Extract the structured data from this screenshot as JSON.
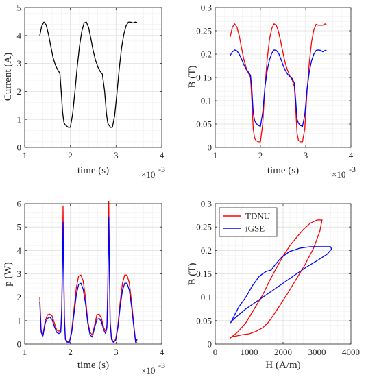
{
  "chart_data": [
    {
      "type": "line",
      "xlabel": "time (s)",
      "ylabel": "Current (A)",
      "xlim": [
        1,
        4
      ],
      "ylim": [
        0,
        5
      ],
      "x_ticks": [
        1,
        2,
        3,
        4
      ],
      "y_ticks": [
        0,
        1,
        2,
        3,
        4,
        5
      ],
      "x_exponent": "-3",
      "grid": true,
      "minor_grid": true,
      "series": [
        {
          "color": "#000000",
          "x": [
            1.33,
            1.37,
            1.42,
            1.47,
            1.52,
            1.57,
            1.62,
            1.67,
            1.72,
            1.77,
            1.8,
            1.83,
            1.86,
            1.89,
            1.92,
            1.96,
            2.0,
            2.05,
            2.1,
            2.15,
            2.2,
            2.25,
            2.3,
            2.35,
            2.4,
            2.45,
            2.5,
            2.55,
            2.6,
            2.65,
            2.7,
            2.75,
            2.79,
            2.82,
            2.84,
            2.86,
            2.88,
            2.92,
            2.97,
            3.02,
            3.07,
            3.12,
            3.17,
            3.22,
            3.27,
            3.32,
            3.37,
            3.42,
            3.46
          ],
          "y": [
            4.0,
            4.32,
            4.48,
            4.38,
            4.05,
            3.62,
            3.22,
            2.95,
            2.78,
            2.65,
            2.0,
            1.25,
            0.88,
            0.8,
            0.76,
            0.71,
            0.72,
            1.2,
            2.0,
            2.88,
            3.62,
            4.15,
            4.45,
            4.48,
            4.28,
            3.88,
            3.45,
            3.12,
            2.88,
            2.72,
            2.62,
            2.0,
            1.2,
            0.86,
            0.8,
            0.76,
            0.71,
            0.72,
            1.15,
            1.95,
            2.82,
            3.55,
            4.05,
            4.35,
            4.48,
            4.48,
            4.45,
            4.48,
            4.47
          ]
        }
      ]
    },
    {
      "type": "line",
      "xlabel": "time (s)",
      "ylabel": "B (T)",
      "xlim": [
        1,
        4
      ],
      "ylim": [
        0,
        0.3
      ],
      "x_ticks": [
        1,
        2,
        3,
        4
      ],
      "y_ticks": [
        0,
        0.05,
        0.1,
        0.15,
        0.2,
        0.25,
        0.3
      ],
      "x_exponent": "-3",
      "grid": true,
      "minor_grid": true,
      "series": [
        {
          "color": "#ff0000",
          "x": [
            1.33,
            1.38,
            1.43,
            1.48,
            1.53,
            1.58,
            1.63,
            1.68,
            1.73,
            1.78,
            1.81,
            1.84,
            1.87,
            1.9,
            1.95,
            2.0,
            2.05,
            2.1,
            2.15,
            2.2,
            2.25,
            2.3,
            2.35,
            2.4,
            2.45,
            2.5,
            2.55,
            2.6,
            2.65,
            2.7,
            2.75,
            2.78,
            2.81,
            2.84,
            2.88,
            2.93,
            2.98,
            3.03,
            3.08,
            3.13,
            3.18,
            3.23,
            3.28,
            3.33,
            3.38,
            3.43,
            3.46
          ],
          "y": [
            0.237,
            0.258,
            0.265,
            0.258,
            0.24,
            0.214,
            0.19,
            0.172,
            0.16,
            0.15,
            0.1,
            0.04,
            0.02,
            0.015,
            0.012,
            0.012,
            0.05,
            0.13,
            0.19,
            0.232,
            0.255,
            0.265,
            0.262,
            0.248,
            0.226,
            0.202,
            0.18,
            0.165,
            0.153,
            0.145,
            0.13,
            0.08,
            0.03,
            0.015,
            0.012,
            0.012,
            0.04,
            0.12,
            0.182,
            0.226,
            0.252,
            0.264,
            0.262,
            0.262,
            0.262,
            0.265,
            0.263
          ]
        },
        {
          "color": "#0000ff",
          "x": [
            1.33,
            1.38,
            1.43,
            1.48,
            1.53,
            1.58,
            1.63,
            1.68,
            1.73,
            1.78,
            1.81,
            1.84,
            1.87,
            1.9,
            1.95,
            2.0,
            2.05,
            2.1,
            2.15,
            2.2,
            2.25,
            2.3,
            2.35,
            2.4,
            2.45,
            2.5,
            2.55,
            2.6,
            2.65,
            2.7,
            2.75,
            2.78,
            2.81,
            2.84,
            2.88,
            2.93,
            2.98,
            3.03,
            3.08,
            3.13,
            3.18,
            3.23,
            3.28,
            3.33,
            3.38,
            3.43,
            3.46
          ],
          "y": [
            0.197,
            0.205,
            0.209,
            0.207,
            0.2,
            0.19,
            0.178,
            0.168,
            0.162,
            0.155,
            0.125,
            0.075,
            0.058,
            0.052,
            0.047,
            0.045,
            0.075,
            0.13,
            0.165,
            0.188,
            0.202,
            0.209,
            0.208,
            0.202,
            0.19,
            0.176,
            0.165,
            0.157,
            0.152,
            0.148,
            0.138,
            0.1,
            0.06,
            0.052,
            0.047,
            0.045,
            0.07,
            0.125,
            0.162,
            0.186,
            0.2,
            0.208,
            0.209,
            0.208,
            0.205,
            0.208,
            0.208
          ]
        }
      ]
    },
    {
      "type": "line",
      "xlabel": "time (s)",
      "ylabel": "p (W)",
      "xlim": [
        1,
        4
      ],
      "ylim": [
        0,
        6
      ],
      "x_ticks": [
        1,
        2,
        3,
        4
      ],
      "y_ticks": [
        0,
        1,
        2,
        3,
        4,
        5,
        6
      ],
      "x_exponent": "-3",
      "grid": true,
      "minor_grid": true,
      "series": [
        {
          "color": "#ff0000",
          "x": [
            1.33,
            1.36,
            1.4,
            1.45,
            1.5,
            1.55,
            1.6,
            1.65,
            1.7,
            1.75,
            1.79,
            1.81,
            1.83,
            1.84,
            1.85,
            1.87,
            1.89,
            1.93,
            1.98,
            2.03,
            2.08,
            2.13,
            2.18,
            2.23,
            2.28,
            2.33,
            2.38,
            2.43,
            2.48,
            2.53,
            2.58,
            2.63,
            2.68,
            2.73,
            2.77,
            2.8,
            2.82,
            2.84,
            2.85,
            2.87,
            2.9,
            2.94,
            2.99,
            3.04,
            3.09,
            3.14,
            3.19,
            3.24,
            3.29,
            3.34,
            3.39,
            3.43,
            3.46
          ],
          "y": [
            2.0,
            0.6,
            0.4,
            1.0,
            1.25,
            1.28,
            1.2,
            0.9,
            0.6,
            0.55,
            0.6,
            1.5,
            4.0,
            5.9,
            4.0,
            1.2,
            0.25,
            0.1,
            0.1,
            0.6,
            1.5,
            2.4,
            2.9,
            2.95,
            2.7,
            2.0,
            1.0,
            0.5,
            0.4,
            0.8,
            1.25,
            1.28,
            1.1,
            0.7,
            0.55,
            0.8,
            2.5,
            6.1,
            4.5,
            1.0,
            0.25,
            0.1,
            0.2,
            0.8,
            1.8,
            2.6,
            2.95,
            2.95,
            2.6,
            1.8,
            0.8,
            0.1,
            0.05
          ]
        },
        {
          "color": "#0000ff",
          "x": [
            1.33,
            1.36,
            1.4,
            1.45,
            1.5,
            1.55,
            1.6,
            1.65,
            1.7,
            1.75,
            1.79,
            1.81,
            1.83,
            1.84,
            1.85,
            1.87,
            1.89,
            1.93,
            1.98,
            2.03,
            2.08,
            2.13,
            2.18,
            2.23,
            2.28,
            2.33,
            2.38,
            2.43,
            2.48,
            2.53,
            2.58,
            2.63,
            2.68,
            2.73,
            2.77,
            2.8,
            2.82,
            2.84,
            2.85,
            2.87,
            2.9,
            2.94,
            2.99,
            3.04,
            3.09,
            3.14,
            3.19,
            3.24,
            3.29,
            3.34,
            3.39,
            3.43,
            3.46
          ],
          "y": [
            1.8,
            0.5,
            0.35,
            0.9,
            1.1,
            1.15,
            1.05,
            0.75,
            0.5,
            0.45,
            0.5,
            1.3,
            3.6,
            5.2,
            3.6,
            1.0,
            0.2,
            0.08,
            0.08,
            0.5,
            1.3,
            2.1,
            2.55,
            2.6,
            2.35,
            1.75,
            0.9,
            0.4,
            0.3,
            0.7,
            1.05,
            1.1,
            0.95,
            0.6,
            0.45,
            0.7,
            2.2,
            5.4,
            4.0,
            0.9,
            0.2,
            0.08,
            0.15,
            0.7,
            1.6,
            2.3,
            2.6,
            2.6,
            2.3,
            1.6,
            0.7,
            0.05,
            0.2
          ]
        }
      ]
    },
    {
      "type": "line",
      "xlabel": "H (A/m)",
      "ylabel": "B (T)",
      "xlim": [
        0,
        4000
      ],
      "ylim": [
        0,
        0.3
      ],
      "x_ticks": [
        0,
        1000,
        2000,
        3000,
        4000
      ],
      "y_ticks": [
        0,
        0.05,
        0.1,
        0.15,
        0.2,
        0.25,
        0.3
      ],
      "grid": true,
      "minor_grid": true,
      "legend": "top-left",
      "series": [
        {
          "name": "TDNU",
          "color": "#ff0000",
          "x": [
            430,
            650,
            900,
            1150,
            1400,
            1600,
            1800,
            2000,
            2200,
            2400,
            2600,
            2800,
            3000,
            3150,
            3080,
            2900,
            2650,
            2400,
            2150,
            1900,
            1700,
            1550,
            1400,
            1200,
            1000,
            800,
            600,
            450,
            430
          ],
          "y": [
            0.012,
            0.025,
            0.045,
            0.075,
            0.105,
            0.135,
            0.162,
            0.188,
            0.21,
            0.228,
            0.245,
            0.258,
            0.265,
            0.265,
            0.24,
            0.205,
            0.17,
            0.14,
            0.11,
            0.082,
            0.06,
            0.045,
            0.035,
            0.027,
            0.022,
            0.02,
            0.017,
            0.015,
            0.012
          ]
        },
        {
          "name": "iGSE",
          "color": "#0000ff",
          "x": [
            450,
            700,
            900,
            1100,
            1300,
            1500,
            1650,
            1750,
            1950,
            2200,
            2500,
            2800,
            3100,
            3400,
            3430,
            3300,
            3000,
            2700,
            2400,
            2100,
            1800,
            1500,
            1200,
            900,
            650,
            500,
            450
          ],
          "y": [
            0.045,
            0.08,
            0.1,
            0.125,
            0.145,
            0.155,
            0.158,
            0.168,
            0.185,
            0.198,
            0.205,
            0.208,
            0.208,
            0.208,
            0.203,
            0.192,
            0.178,
            0.165,
            0.15,
            0.135,
            0.12,
            0.105,
            0.09,
            0.075,
            0.06,
            0.05,
            0.045
          ]
        }
      ]
    }
  ]
}
